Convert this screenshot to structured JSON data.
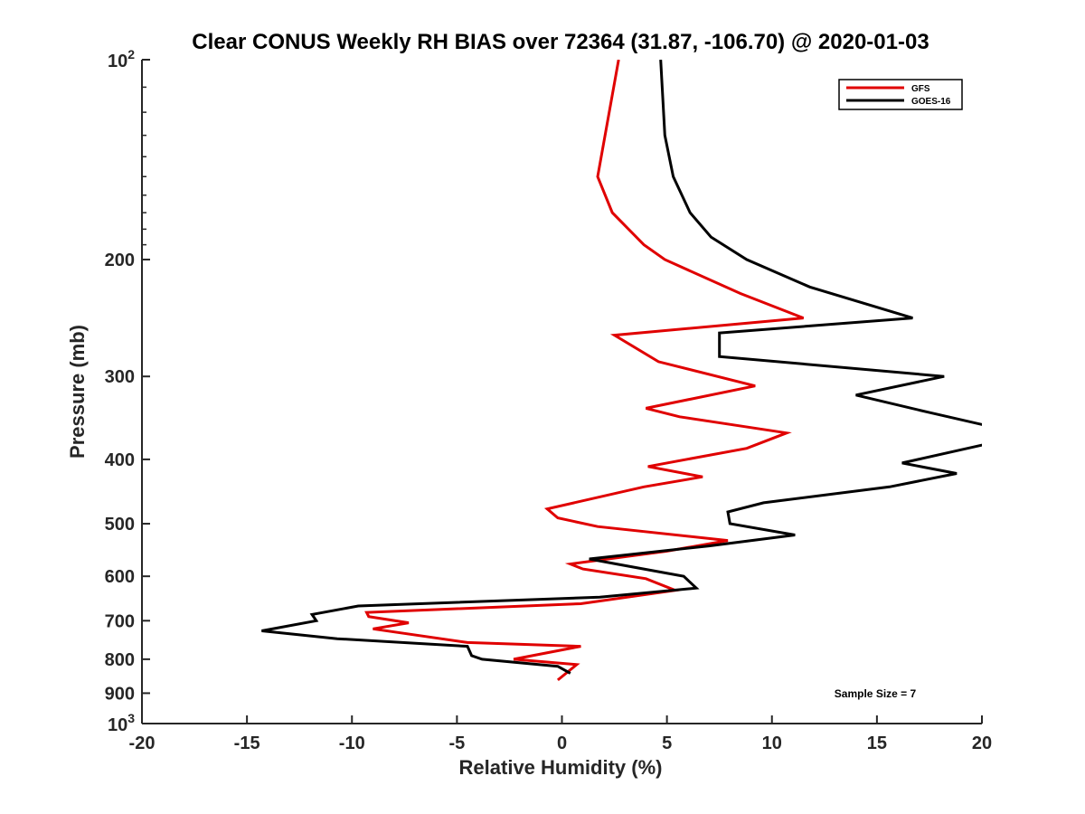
{
  "chart_data": {
    "type": "line",
    "title": "Clear CONUS Weekly RH BIAS over 72364 (31.87, -106.70) @ 2020-01-03",
    "xlabel": "Relative Humidity (%)",
    "ylabel": "Pressure (mb)",
    "xlim": [
      -20,
      20
    ],
    "ylim": [
      100,
      1000
    ],
    "yscale": "log",
    "yreversed": true,
    "grid": false,
    "legend_position": "top-right",
    "x_ticks": [
      -20,
      -15,
      -10,
      -5,
      0,
      5,
      10,
      15,
      20
    ],
    "x_tick_labels": [
      "-20",
      "-15",
      "-10",
      "-5",
      "0",
      "5",
      "10",
      "15",
      "20"
    ],
    "y_ticks": [
      200,
      300,
      400,
      500,
      600,
      700,
      800,
      900
    ],
    "y_tick_labels": [
      "200",
      "300",
      "400",
      "500",
      "600",
      "700",
      "800",
      "900"
    ],
    "y_tick_top": {
      "base": "10",
      "exp": "2",
      "value": 100
    },
    "y_tick_bottom": {
      "base": "10",
      "exp": "3",
      "value": 1000
    },
    "annotation": "Sample Size = 7",
    "series": [
      {
        "name": "GFS",
        "color": "#e00000",
        "points": [
          [
            2.7,
            100
          ],
          [
            1.7,
            150
          ],
          [
            2.4,
            170
          ],
          [
            3.9,
            190
          ],
          [
            4.9,
            200
          ],
          [
            8.5,
            225
          ],
          [
            11.5,
            245
          ],
          [
            2.5,
            260
          ],
          [
            4.6,
            285
          ],
          [
            9.2,
            310
          ],
          [
            4.0,
            335
          ],
          [
            5.6,
            345
          ],
          [
            10.7,
            365
          ],
          [
            8.8,
            385
          ],
          [
            4.1,
            410
          ],
          [
            6.7,
            425
          ],
          [
            3.9,
            440
          ],
          [
            -0.7,
            475
          ],
          [
            -0.2,
            490
          ],
          [
            1.7,
            505
          ],
          [
            7.9,
            530
          ],
          [
            5.0,
            550
          ],
          [
            0.4,
            575
          ],
          [
            1.0,
            585
          ],
          [
            4.0,
            605
          ],
          [
            5.4,
            630
          ],
          [
            0.9,
            660
          ],
          [
            -9.3,
            680
          ],
          [
            -9.2,
            690
          ],
          [
            -7.3,
            705
          ],
          [
            -9.0,
            720
          ],
          [
            -4.5,
            755
          ],
          [
            0.9,
            765
          ],
          [
            -2.3,
            800
          ],
          [
            0.7,
            815
          ],
          [
            -0.2,
            860
          ]
        ]
      },
      {
        "name": "GOES-16",
        "color": "#000000",
        "points": [
          [
            4.7,
            100
          ],
          [
            4.9,
            130
          ],
          [
            5.3,
            150
          ],
          [
            6.1,
            170
          ],
          [
            7.1,
            185
          ],
          [
            8.8,
            200
          ],
          [
            11.8,
            220
          ],
          [
            16.7,
            245
          ],
          [
            7.5,
            258
          ],
          [
            7.5,
            280
          ],
          [
            18.2,
            300
          ],
          [
            14.0,
            320
          ],
          [
            17.5,
            340
          ],
          [
            20.1,
            355
          ],
          [
            20.1,
            380
          ],
          [
            16.2,
            405
          ],
          [
            18.8,
            420
          ],
          [
            15.6,
            440
          ],
          [
            9.6,
            465
          ],
          [
            7.9,
            480
          ],
          [
            8.0,
            500
          ],
          [
            11.1,
            520
          ],
          [
            7.0,
            540
          ],
          [
            1.3,
            565
          ],
          [
            2.6,
            575
          ],
          [
            5.8,
            600
          ],
          [
            6.4,
            625
          ],
          [
            1.8,
            645
          ],
          [
            -9.7,
            665
          ],
          [
            -11.9,
            685
          ],
          [
            -11.7,
            700
          ],
          [
            -14.3,
            725
          ],
          [
            -10.7,
            745
          ],
          [
            -4.5,
            765
          ],
          [
            -4.3,
            790
          ],
          [
            -3.8,
            800
          ],
          [
            -0.2,
            820
          ],
          [
            0.4,
            840
          ]
        ]
      }
    ]
  }
}
